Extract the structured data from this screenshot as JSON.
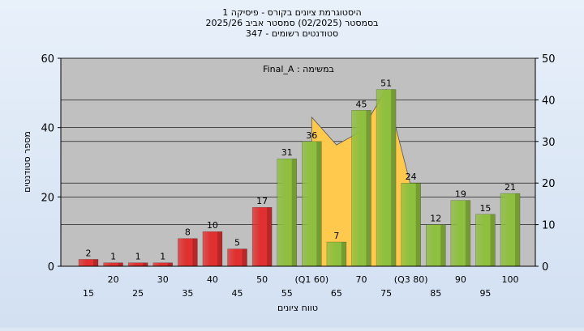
{
  "chart_data": {
    "type": "bar",
    "title": "היסטוגרמת ציונים בקורס - פיסיקה 1",
    "subtitle": "בסמסטר  (02/2025)  סמסטר אביב 2025/26",
    "subtitle2": "סטודנטים רשומים - 347",
    "annotation": "Final_A : במשימה",
    "x_label": "טווח ציונים",
    "y_label": "מספר סטודנטים",
    "categories": [
      "15",
      "20",
      "25",
      "30",
      "35",
      "40",
      "45",
      "50",
      "55",
      "(Q1 60)",
      "65",
      "70",
      "75",
      "(Q3 80)",
      "85",
      "90",
      "95",
      "100"
    ],
    "values": [
      2,
      1,
      1,
      1,
      8,
      10,
      5,
      17,
      31,
      36,
      7,
      45,
      51,
      24,
      12,
      19,
      15,
      21
    ],
    "colors": [
      "#e03030",
      "#e03030",
      "#e03030",
      "#e03030",
      "#e03030",
      "#e03030",
      "#e03030",
      "#e03030",
      "#8fbf3f",
      "#8fbf3f",
      "#8fbf3f",
      "#8fbf3f",
      "#8fbf3f",
      "#8fbf3f",
      "#8fbf3f",
      "#8fbf3f",
      "#8fbf3f",
      "#8fbf3f"
    ],
    "area": {
      "color": "#ffc94d",
      "start_index": 9,
      "values": [
        43,
        35,
        39,
        51,
        23
      ]
    },
    "ylim": [
      0,
      60
    ],
    "yticks": [
      0,
      20,
      40,
      60
    ],
    "y2lim": [
      0,
      50
    ],
    "y2ticks": [
      0,
      10,
      20,
      30,
      40,
      50
    ],
    "grid": true
  }
}
